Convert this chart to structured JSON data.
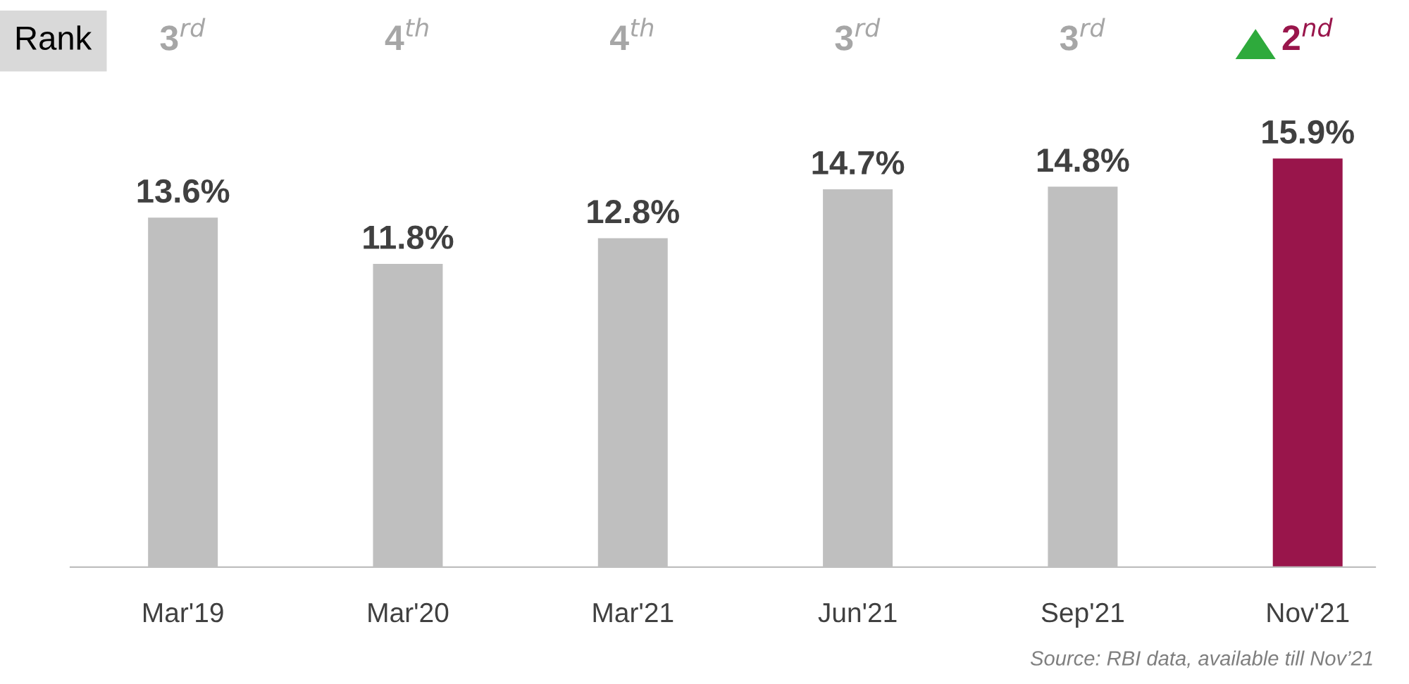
{
  "chart_data": {
    "type": "bar",
    "categories": [
      "Mar'19",
      "Mar'20",
      "Mar'21",
      "Jun'21",
      "Sep'21",
      "Nov'21"
    ],
    "values": [
      13.6,
      11.8,
      12.8,
      14.7,
      14.8,
      15.9
    ],
    "colors": [
      "#bfbfbf",
      "#bfbfbf",
      "#bfbfbf",
      "#bfbfbf",
      "#bfbfbf",
      "#99154b"
    ],
    "value_labels": [
      "13.6%",
      "11.8%",
      "12.8%",
      "14.7%",
      "14.8%",
      "15.9%"
    ],
    "tick_labels": "x",
    "grid": false,
    "legend": false,
    "annotations": [
      "Rank",
      "3$^{rd}$",
      "4$^{th}$",
      "4$^{th}$",
      "3$^{rd}$",
      "3$^{rd}$",
      "2$^{nd}$",
      "Source: RBI data, available till Nov’21"
    ]
  }
}
